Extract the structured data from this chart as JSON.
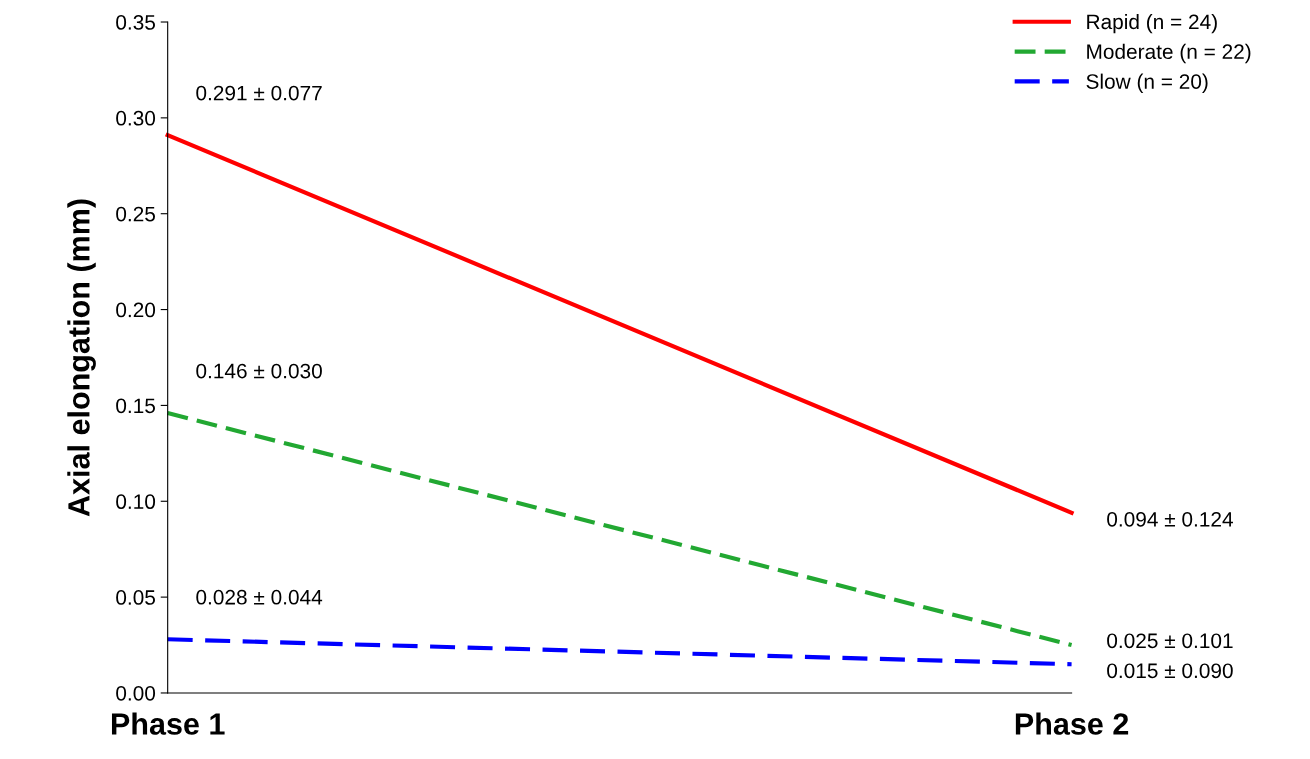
{
  "chart_data": {
    "type": "line",
    "categories": [
      "Phase 1",
      "Phase 2"
    ],
    "ylabel": "Axial elongation (mm)",
    "ylim": [
      0,
      0.35
    ],
    "yticks": [
      {
        "value": 0,
        "label": "0.00"
      },
      {
        "value": 0.05,
        "label": "0.05"
      },
      {
        "value": 0.1,
        "label": "0.10"
      },
      {
        "value": 0.15,
        "label": "0.15"
      },
      {
        "value": 0.2,
        "label": "0.20"
      },
      {
        "value": 0.25,
        "label": "0.25"
      },
      {
        "value": 0.3,
        "label": "0.30"
      },
      {
        "value": 0.35,
        "label": "0.35"
      }
    ],
    "series": [
      {
        "name": "Rapid (n = 24)",
        "color": "#ff0000",
        "line_style": "solid",
        "values": [
          0.291,
          0.094
        ],
        "value_labels": [
          "0.291 ± 0.077",
          "0.094 ± 0.124"
        ]
      },
      {
        "name": "Moderate (n = 22)",
        "color": "#22a832",
        "line_style": "dashed",
        "values": [
          0.146,
          0.025
        ],
        "value_labels": [
          "0.146 ± 0.030",
          "0.025 ± 0.101"
        ]
      },
      {
        "name": "Slow (n = 20)",
        "color": "#0000ff",
        "line_style": "dashed",
        "values": [
          0.028,
          0.015
        ],
        "value_labels": [
          "0.028 ± 0.044",
          "0.015 ± 0.090"
        ]
      }
    ],
    "grid": false,
    "legend": "top right",
    "marker": "none"
  }
}
